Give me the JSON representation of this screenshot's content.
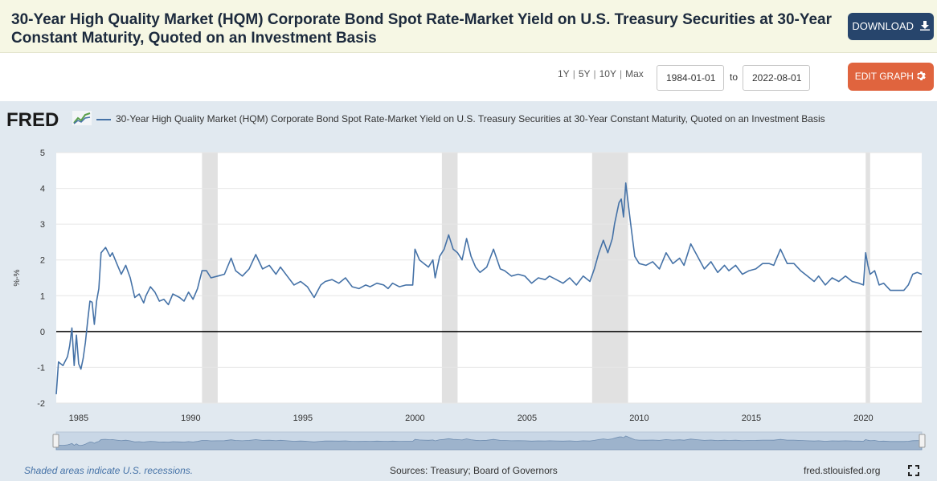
{
  "header": {
    "title": "30-Year High Quality Market (HQM) Corporate Bond Spot Rate-Market Yield on U.S. Treasury Securities at 30-Year Constant Maturity, Quoted on an Investment Basis",
    "download_label": "DOWNLOAD",
    "download_icon": "download-icon"
  },
  "controls": {
    "ranges": [
      "1Y",
      "5Y",
      "10Y",
      "Max"
    ],
    "start_date": "1984-01-01",
    "to_label": "to",
    "end_date": "2022-08-01",
    "edit_label": "EDIT GRAPH",
    "edit_icon": "gear-icon"
  },
  "chart": {
    "logo": "FRED",
    "legend_label": "30-Year High Quality Market (HQM) Corporate Bond Spot Rate-Market Yield on U.S. Treasury Securities at 30-Year Constant Maturity, Quoted on an Investment Basis",
    "footer_note": "Shaded areas indicate U.S. recessions.",
    "sources": "Sources: Treasury; Board of Governors",
    "site": "fred.stlouisfed.org"
  },
  "chart_data": {
    "type": "line",
    "title": "",
    "xlabel": "",
    "ylabel": "%-%",
    "xlim": [
      1984.0,
      2022.6
    ],
    "ylim": [
      -2,
      5
    ],
    "y_ticks": [
      "-2",
      "-1",
      "0",
      "1",
      "2",
      "3",
      "4",
      "5"
    ],
    "x_ticks": [
      "1985",
      "1990",
      "1995",
      "2000",
      "2005",
      "2010",
      "2015",
      "2020"
    ],
    "x_tick_values": [
      1985,
      1990,
      1995,
      2000,
      2005,
      2010,
      2015,
      2020
    ],
    "grid": true,
    "series_color": "#4572a7",
    "recessions": [
      [
        1990.5,
        1991.2
      ],
      [
        2001.2,
        2001.9
      ],
      [
        2007.9,
        2009.5
      ],
      [
        2020.1,
        2020.3
      ]
    ],
    "series": [
      {
        "name": "30-Year High Quality Market (HQM) Corporate Bond Spot Rate-Market Yield on U.S. Treasury Securities at 30-Year Constant Maturity, Quoted on an Investment Basis",
        "x": [
          1984.0,
          1984.1,
          1984.3,
          1984.5,
          1984.6,
          1984.7,
          1984.8,
          1984.9,
          1985.0,
          1985.1,
          1985.2,
          1985.3,
          1985.4,
          1985.5,
          1985.6,
          1985.7,
          1985.8,
          1985.9,
          1986.0,
          1986.2,
          1986.4,
          1986.5,
          1986.7,
          1986.9,
          1987.1,
          1987.3,
          1987.5,
          1987.7,
          1987.9,
          1988.0,
          1988.2,
          1988.4,
          1988.6,
          1988.8,
          1989.0,
          1989.2,
          1989.5,
          1989.7,
          1989.9,
          1990.1,
          1990.3,
          1990.5,
          1990.7,
          1990.9,
          1991.2,
          1991.5,
          1991.8,
          1992.0,
          1992.3,
          1992.6,
          1992.9,
          1993.2,
          1993.5,
          1993.8,
          1994.0,
          1994.3,
          1994.6,
          1994.9,
          1995.2,
          1995.5,
          1995.8,
          1996.0,
          1996.3,
          1996.6,
          1996.9,
          1997.2,
          1997.5,
          1997.8,
          1998.0,
          1998.3,
          1998.6,
          1998.8,
          1999.0,
          1999.3,
          1999.6,
          1999.9,
          2000.0,
          2000.2,
          2000.4,
          2000.6,
          2000.8,
          2000.9,
          2001.1,
          2001.3,
          2001.5,
          2001.7,
          2001.9,
          2002.1,
          2002.3,
          2002.5,
          2002.7,
          2002.9,
          2003.2,
          2003.5,
          2003.8,
          2004.0,
          2004.3,
          2004.6,
          2004.9,
          2005.2,
          2005.5,
          2005.8,
          2006.0,
          2006.3,
          2006.6,
          2006.9,
          2007.2,
          2007.5,
          2007.8,
          2008.0,
          2008.2,
          2008.4,
          2008.6,
          2008.8,
          2008.9,
          2009.1,
          2009.2,
          2009.3,
          2009.4,
          2009.6,
          2009.8,
          2010.0,
          2010.3,
          2010.6,
          2010.9,
          2011.2,
          2011.5,
          2011.8,
          2012.0,
          2012.3,
          2012.6,
          2012.9,
          2013.2,
          2013.5,
          2013.8,
          2014.0,
          2014.3,
          2014.6,
          2014.9,
          2015.2,
          2015.5,
          2015.8,
          2016.0,
          2016.3,
          2016.6,
          2016.9,
          2017.2,
          2017.5,
          2017.8,
          2018.0,
          2018.3,
          2018.6,
          2018.9,
          2019.2,
          2019.5,
          2019.8,
          2020.0,
          2020.1,
          2020.2,
          2020.3,
          2020.5,
          2020.7,
          2020.9,
          2021.2,
          2021.5,
          2021.8,
          2022.0,
          2022.2,
          2022.4,
          2022.6
        ],
        "values": [
          -1.75,
          -0.85,
          -0.95,
          -0.7,
          -0.4,
          0.1,
          -0.95,
          -0.1,
          -0.9,
          -1.05,
          -0.75,
          -0.3,
          0.3,
          0.85,
          0.82,
          0.2,
          0.85,
          1.2,
          2.2,
          2.35,
          2.1,
          2.2,
          1.9,
          1.6,
          1.85,
          1.5,
          0.95,
          1.05,
          0.8,
          1.0,
          1.25,
          1.1,
          0.85,
          0.9,
          0.75,
          1.05,
          0.95,
          0.85,
          1.1,
          0.9,
          1.2,
          1.7,
          1.7,
          1.5,
          1.55,
          1.6,
          2.05,
          1.7,
          1.55,
          1.75,
          2.15,
          1.75,
          1.85,
          1.6,
          1.8,
          1.55,
          1.3,
          1.4,
          1.25,
          0.95,
          1.3,
          1.4,
          1.45,
          1.35,
          1.5,
          1.25,
          1.2,
          1.3,
          1.25,
          1.35,
          1.3,
          1.2,
          1.35,
          1.25,
          1.3,
          1.3,
          2.3,
          2.0,
          1.9,
          1.8,
          2.0,
          1.5,
          2.1,
          2.3,
          2.7,
          2.3,
          2.2,
          2.0,
          2.6,
          2.1,
          1.8,
          1.65,
          1.8,
          2.3,
          1.75,
          1.7,
          1.55,
          1.6,
          1.55,
          1.35,
          1.5,
          1.45,
          1.55,
          1.45,
          1.35,
          1.5,
          1.3,
          1.55,
          1.4,
          1.75,
          2.2,
          2.55,
          2.2,
          2.6,
          3.0,
          3.6,
          3.7,
          3.2,
          4.15,
          3.1,
          2.1,
          1.9,
          1.85,
          1.95,
          1.75,
          2.2,
          1.9,
          2.05,
          1.85,
          2.45,
          2.1,
          1.75,
          1.95,
          1.65,
          1.85,
          1.7,
          1.85,
          1.6,
          1.7,
          1.75,
          1.9,
          1.9,
          1.85,
          2.3,
          1.9,
          1.9,
          1.7,
          1.55,
          1.4,
          1.55,
          1.3,
          1.5,
          1.4,
          1.55,
          1.4,
          1.35,
          1.3,
          2.2,
          1.85,
          1.6,
          1.7,
          1.3,
          1.35,
          1.15,
          1.15,
          1.15,
          1.3,
          1.6,
          1.65,
          1.6
        ]
      }
    ]
  }
}
